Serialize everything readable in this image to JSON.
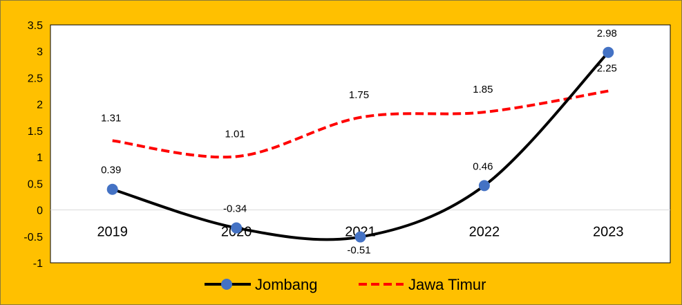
{
  "chart_data": {
    "type": "line",
    "categories": [
      "2019",
      "2020",
      "2021",
      "2022",
      "2023"
    ],
    "series": [
      {
        "name": "Jombang",
        "values": [
          0.39,
          -0.34,
          -0.51,
          0.46,
          2.98
        ],
        "color": "#000000",
        "marker_color": "#4472C4",
        "line_style": "solid",
        "smooth": true
      },
      {
        "name": "Jawa Timur",
        "values": [
          1.31,
          1.01,
          1.75,
          1.85,
          2.25
        ],
        "color": "#FF0000",
        "line_style": "dashed",
        "smooth": true
      }
    ],
    "data_labels": {
      "Jombang": [
        "0.39",
        "-0.34",
        "-0.51",
        "0.46",
        "2.98"
      ],
      "Jawa Timur": [
        "1.31",
        "1.01",
        "1.75",
        "1.85",
        "2.25"
      ]
    },
    "ylim": [
      -1,
      3.5
    ],
    "y_ticks": [
      "3.5",
      "3",
      "2.5",
      "2",
      "1.5",
      "1",
      "0.5",
      "0",
      "-0.5",
      "-1"
    ],
    "title": "",
    "xlabel": "",
    "ylabel": "",
    "grid": false,
    "legend": "bottom",
    "background": "#FFC000",
    "plot_background": "#FFFFFF"
  }
}
